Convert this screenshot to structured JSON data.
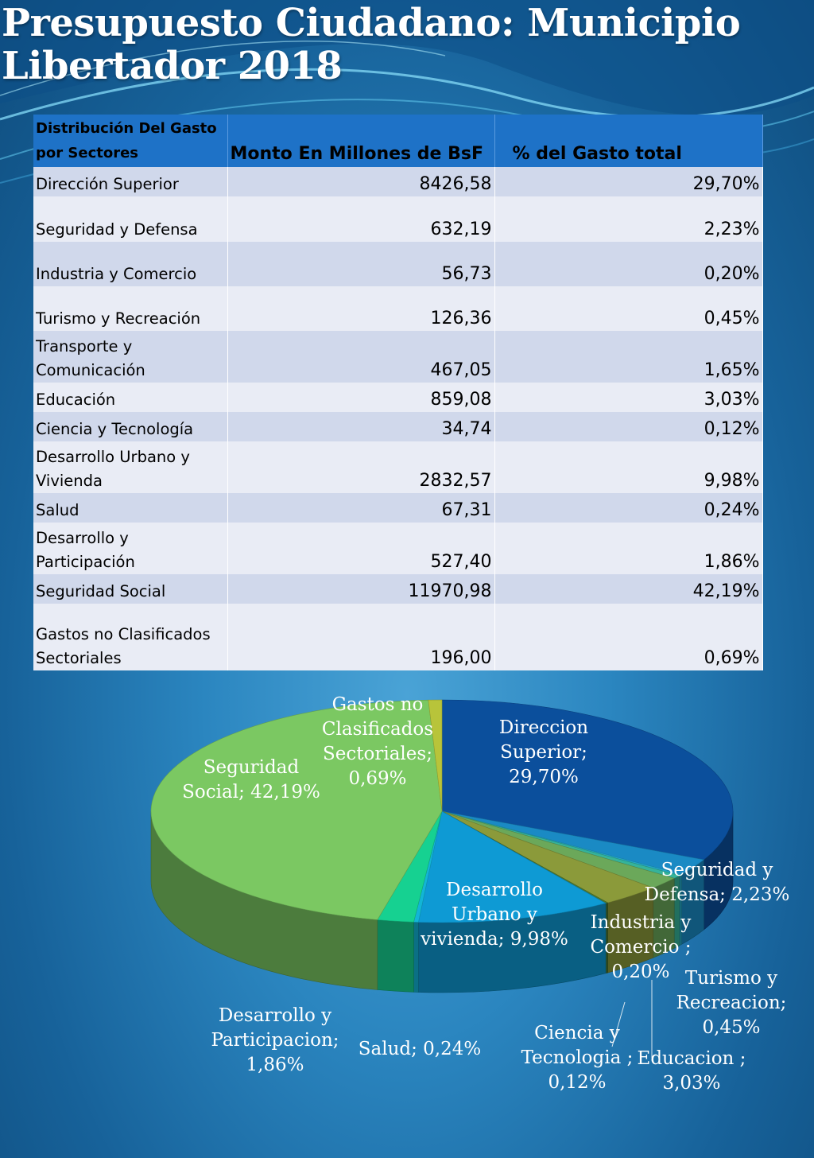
{
  "title": "Presupuesto Ciudadano: Municipio Libertador 2018",
  "table": {
    "headers": [
      "Distribución  Del Gasto por Sectores",
      "Monto En Millones de BsF",
      "% del Gasto total"
    ],
    "rows": [
      {
        "name": "Dirección Superior",
        "monto": "8426,58",
        "pct": "29,70%"
      },
      {
        "name": "Seguridad y Defensa",
        "monto": "632,19",
        "pct": "2,23%"
      },
      {
        "name": "Industria y Comercio",
        "monto": "56,73",
        "pct": "0,20%"
      },
      {
        "name": "Turismo y Recreación",
        "monto": "126,36",
        "pct": "0,45%"
      },
      {
        "name": "Transporte y Comunicación",
        "monto": "467,05",
        "pct": "1,65%"
      },
      {
        "name": "Educación",
        "monto": "859,08",
        "pct": "3,03%"
      },
      {
        "name": "Ciencia y Tecnología",
        "monto": "34,74",
        "pct": "0,12%"
      },
      {
        "name": "Desarrollo Urbano y Vivienda",
        "monto": "2832,57",
        "pct": "9,98%"
      },
      {
        "name": "Salud",
        "monto": "67,31",
        "pct": "0,24%"
      },
      {
        "name": "Desarrollo y Participación",
        "monto": "527,40",
        "pct": "1,86%"
      },
      {
        "name": "Seguridad Social",
        "monto": "11970,98",
        "pct": "42,19%"
      },
      {
        "name": "Gastos no Clasificados Sectoriales",
        "monto": "196,00",
        "pct": "0,69%"
      }
    ]
  },
  "chart_data": {
    "type": "pie",
    "slices": [
      {
        "label": "Direccion Superior; 29,70%",
        "value": 29.7,
        "color": "#0b4f9c"
      },
      {
        "label": "Seguridad y Defensa; 2,23%",
        "value": 2.23,
        "color": "#1a8ac4"
      },
      {
        "label": "Industria y Comercio ; 0,20%",
        "value": 0.2,
        "color": "#22a7c9"
      },
      {
        "label": "Turismo y Recreacion; 0,45%",
        "value": 0.45,
        "color": "#35b39a"
      },
      {
        "label": "",
        "value": 1.65,
        "color": "#6ba85a"
      },
      {
        "label": "Educacion ; 3,03%",
        "value": 3.03,
        "color": "#8b9a3a"
      },
      {
        "label": "Ciencia y Tecnologia ; 0,12%",
        "value": 0.12,
        "color": "#4d7a2e"
      },
      {
        "label": "Desarrollo Urbano  y vivienda; 9,98%",
        "value": 9.98,
        "color": "#0e9ad4"
      },
      {
        "label": "Salud; 0,24%",
        "value": 0.24,
        "color": "#12b5d6"
      },
      {
        "label": "Desarrollo y Participacion; 1,86%",
        "value": 1.86,
        "color": "#16d191"
      },
      {
        "label": "Seguridad Social; 42,19%",
        "value": 42.19,
        "color": "#7bc862"
      },
      {
        "label": "Gastos no Clasificados Sectoriales; 0,69%",
        "value": 0.69,
        "color": "#b8c43a"
      }
    ],
    "label_color": "#ffffff"
  }
}
